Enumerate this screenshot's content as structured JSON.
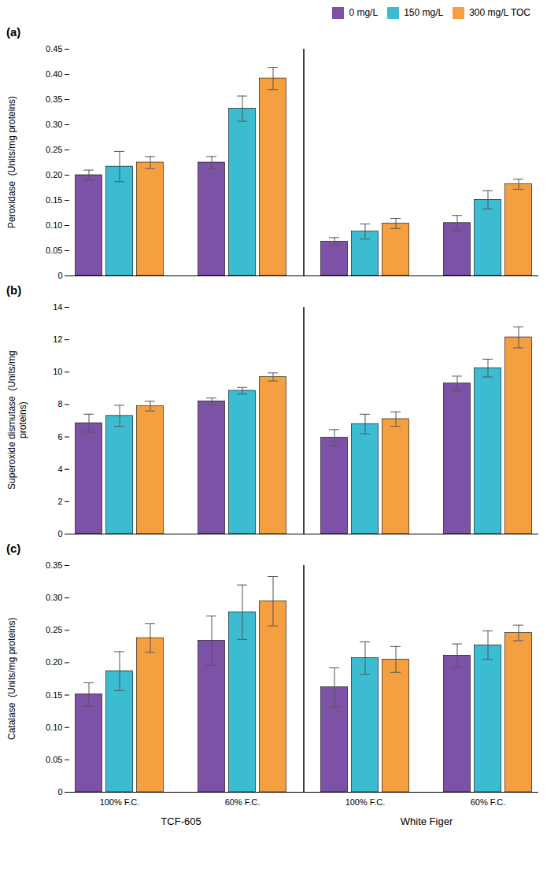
{
  "chart_data": [
    {
      "type": "bar",
      "title": "(a)",
      "ylabel": "Peroxidase  (Units/mg proteins)",
      "categories": [
        null,
        null,
        null,
        null
      ],
      "series": [
        {
          "name": "0 mg/L",
          "color": "#7B52A6",
          "values": [
            0.2,
            0.225,
            0.068,
            0.105
          ],
          "errors": [
            0.01,
            0.012,
            0.008,
            0.015
          ]
        },
        {
          "name": "150 mg/L",
          "color": "#3BBCD0",
          "values": [
            0.217,
            0.332,
            0.088,
            0.151
          ],
          "errors": [
            0.03,
            0.025,
            0.015,
            0.018
          ]
        },
        {
          "name": "300 mg/L TOC",
          "color": "#F5A040",
          "values": [
            0.225,
            0.392,
            0.104,
            0.182
          ],
          "errors": [
            0.012,
            0.022,
            0.01,
            0.01
          ]
        }
      ],
      "ylim": [
        0,
        0.45
      ],
      "yticks": [
        0,
        0.05,
        {
          "value": 0.1,
          "label": "0.10"
        },
        0.15,
        {
          "value": 0.2,
          "label": "0.20"
        },
        0.25,
        {
          "value": 0.3,
          "label": "0.30"
        },
        0.35,
        {
          "value": 0.4,
          "label": "0.40"
        },
        0.45
      ],
      "grid": false,
      "legend": "upper right",
      "tick_labels": "y"
    },
    {
      "type": "bar",
      "title": "(b)",
      "ylabel": "Superoxide dismutase  (Units/mg\nproteins)",
      "categories": [
        null,
        null,
        null,
        null
      ],
      "series": [
        {
          "name": "0 mg/L",
          "color": "#7B52A6",
          "values": [
            6.85,
            8.2,
            5.95,
            9.3
          ],
          "errors": [
            0.55,
            0.2,
            0.5,
            0.45
          ]
        },
        {
          "name": "150 mg/L",
          "color": "#3BBCD0",
          "values": [
            7.3,
            8.85,
            6.8,
            10.25
          ],
          "errors": [
            0.65,
            0.2,
            0.6,
            0.55
          ]
        },
        {
          "name": "300 mg/L TOC",
          "color": "#F5A040",
          "values": [
            7.9,
            9.7,
            7.1,
            12.15
          ],
          "errors": [
            0.3,
            0.25,
            0.45,
            0.65
          ]
        }
      ],
      "ylim": [
        0,
        14
      ],
      "yticks": [
        0,
        2,
        4,
        6,
        8,
        10,
        12,
        14
      ],
      "grid": false,
      "tick_labels": "y"
    },
    {
      "type": "bar",
      "title": "(c)",
      "ylabel": "Catalase  (Units/mg proteins)",
      "categories": [
        "100% F.C.",
        "60% F.C.",
        "100% F.C.",
        "60% F.C."
      ],
      "series": [
        {
          "name": "0 mg/L",
          "color": "#7B52A6",
          "values": [
            0.151,
            0.234,
            0.162,
            0.211
          ],
          "errors": [
            0.018,
            0.038,
            0.03,
            0.018
          ]
        },
        {
          "name": "150 mg/L",
          "color": "#3BBCD0",
          "values": [
            0.187,
            0.278,
            0.207,
            0.227
          ],
          "errors": [
            0.03,
            0.042,
            0.025,
            0.022
          ]
        },
        {
          "name": "300 mg/L TOC",
          "color": "#F5A040",
          "values": [
            0.238,
            0.295,
            0.205,
            0.246
          ],
          "errors": [
            0.022,
            0.038,
            0.02,
            0.012
          ]
        }
      ],
      "ylim": [
        0,
        0.35
      ],
      "yticks": [
        0,
        0.05,
        {
          "value": 0.1,
          "label": "0.10"
        },
        0.15,
        {
          "value": 0.2,
          "label": "0.20"
        },
        0.25,
        {
          "value": 0.3,
          "label": "0.30"
        },
        0.35
      ],
      "annotations": [
        {
          "text": "TCF-605",
          "categories": [
            0,
            1
          ]
        },
        {
          "text": "White Figer",
          "categories": [
            2,
            3
          ]
        }
      ],
      "grid": false
    }
  ]
}
